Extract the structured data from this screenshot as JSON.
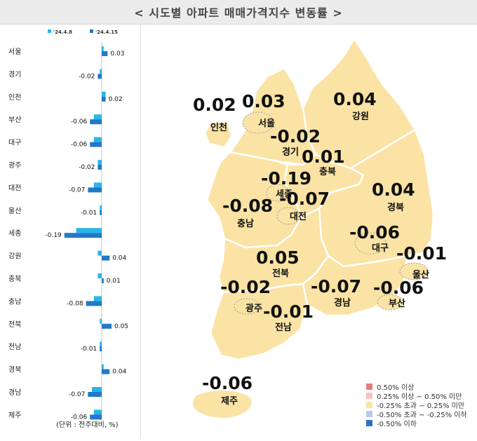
{
  "title": "< 시도별 아파트 매매가격지수 변동률 >",
  "chart_data": {
    "type": "bar",
    "orientation": "horizontal",
    "categories": [
      "서울",
      "경기",
      "인천",
      "부산",
      "대구",
      "광주",
      "대전",
      "울산",
      "세종",
      "강원",
      "충북",
      "충남",
      "전북",
      "전남",
      "경북",
      "경남",
      "제주"
    ],
    "series": [
      {
        "name": "'24.4.8",
        "color": "#29b6e8",
        "values": [
          0.01,
          -0.01,
          0.02,
          -0.04,
          -0.04,
          -0.02,
          -0.04,
          -0.01,
          -0.13,
          -0.02,
          -0.02,
          -0.04,
          -0.01,
          -0.01,
          0.01,
          -0.05,
          -0.04
        ]
      },
      {
        "name": "'24.4.15",
        "color": "#2378c8",
        "values": [
          0.03,
          -0.02,
          0.02,
          -0.06,
          -0.06,
          -0.02,
          -0.07,
          -0.01,
          -0.19,
          0.04,
          0.01,
          -0.08,
          0.05,
          -0.01,
          0.04,
          -0.07,
          -0.06
        ]
      }
    ],
    "value_labels": [
      "0.03",
      "-0.02",
      "0.02",
      "-0.06",
      "-0.06",
      "-0.02",
      "-0.07",
      "-0.01",
      "-0.19",
      "0.04",
      "0.01",
      "-0.08",
      "0.05",
      "-0.01",
      "0.04",
      "-0.07",
      "-0.06"
    ],
    "xlim": [
      -0.2,
      0.1
    ],
    "legend_position": "top",
    "unit_note": "(단위 : 전주대비, %)"
  },
  "map": {
    "regions": [
      {
        "name": "인천",
        "value": "0.02",
        "color": "#faedbd"
      },
      {
        "name": "서울",
        "value": "0.03",
        "color": "#fae3a4"
      },
      {
        "name": "경기",
        "value": "-0.02",
        "color": "#fae3a4"
      },
      {
        "name": "강원",
        "value": "0.04",
        "color": "#fae3a4"
      },
      {
        "name": "충북",
        "value": "0.01",
        "color": "#fae3a4"
      },
      {
        "name": "세종",
        "value": "-0.19",
        "color": "#fae3a4"
      },
      {
        "name": "충남",
        "value": "-0.08",
        "color": "#fae3a4"
      },
      {
        "name": "대전",
        "value": "-0.07",
        "color": "#fae3a4"
      },
      {
        "name": "경북",
        "value": "0.04",
        "color": "#fae3a4"
      },
      {
        "name": "대구",
        "value": "-0.06",
        "color": "#fae3a4"
      },
      {
        "name": "울산",
        "value": "-0.01",
        "color": "#fae3a4"
      },
      {
        "name": "전북",
        "value": "0.05",
        "color": "#fae3a4"
      },
      {
        "name": "광주",
        "value": "-0.02",
        "color": "#fae3a4"
      },
      {
        "name": "전남",
        "value": "-0.01",
        "color": "#fae3a4"
      },
      {
        "name": "경남",
        "value": "-0.07",
        "color": "#fae3a4"
      },
      {
        "name": "부산",
        "value": "-0.06",
        "color": "#fae3a4"
      },
      {
        "name": "제주",
        "value": "-0.06",
        "color": "#fae3a4"
      }
    ],
    "legend": [
      {
        "label": "0.50% 이상",
        "color": "#e87c7c"
      },
      {
        "label": "0.25% 이상 ~ 0.50% 미만",
        "color": "#f7c2c2"
      },
      {
        "label": "-0.25% 초과 ~ 0.25% 미만",
        "color": "#fae3a4"
      },
      {
        "label": "-0.50% 초과 ~ -0.25% 이하",
        "color": "#b9c9e8"
      },
      {
        "label": "-0.50% 이하",
        "color": "#2f6fc4"
      }
    ]
  }
}
